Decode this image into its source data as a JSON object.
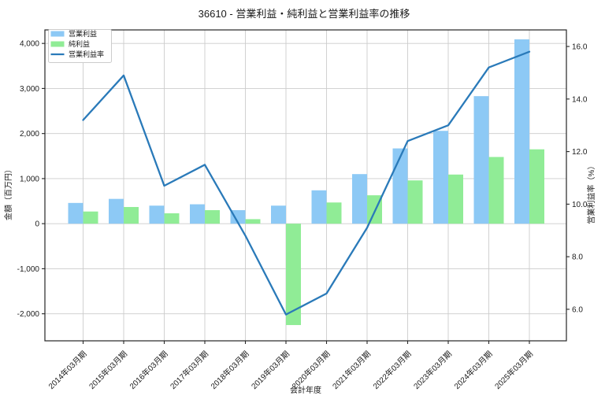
{
  "title": "36610 - 営業利益・純利益と営業利益率の推移",
  "chart_data": {
    "type": "bar+line",
    "title": "36610 - 営業利益・純利益と営業利益率の推移",
    "xlabel": "会計年度",
    "ylabel_left": "金額（百万円）",
    "ylabel_right": "営業利益率（%）",
    "grid": true,
    "legend_position": "upper-left",
    "categories": [
      "2014年03月期",
      "2015年03月期",
      "2016年03月期",
      "2017年03月期",
      "2018年03月期",
      "2019年03月期",
      "2020年03月期",
      "2021年03月期",
      "2022年03月期",
      "2023年03月期",
      "2024年03月期",
      "2025年03月期"
    ],
    "series": [
      {
        "name": "営業利益",
        "type": "bar",
        "axis": "left",
        "color": "#8dc9f5",
        "values": [
          460,
          550,
          400,
          430,
          300,
          400,
          740,
          1100,
          1670,
          2060,
          2830,
          4090
        ]
      },
      {
        "name": "純利益",
        "type": "bar",
        "axis": "left",
        "color": "#90ec96",
        "values": [
          270,
          370,
          230,
          300,
          100,
          -2250,
          470,
          630,
          960,
          1090,
          1480,
          1650
        ]
      },
      {
        "name": "営業利益率",
        "type": "line",
        "axis": "right",
        "color": "#2a7ab9",
        "values": [
          13.2,
          14.9,
          10.7,
          11.5,
          8.8,
          5.8,
          6.6,
          9.1,
          12.4,
          13.0,
          15.2,
          15.8
        ]
      }
    ],
    "ylim_left": [
      -2600,
      4300
    ],
    "ylim_right": [
      4.8,
      16.63
    ],
    "yticks_left": [
      {
        "v": -2000,
        "label": "-2,000"
      },
      {
        "v": -1000,
        "label": "-1,000"
      },
      {
        "v": 0,
        "label": "0"
      },
      {
        "v": 1000,
        "label": "1,000"
      },
      {
        "v": 2000,
        "label": "2,000"
      },
      {
        "v": 3000,
        "label": "3,000"
      },
      {
        "v": 4000,
        "label": "4,000"
      }
    ],
    "yticks_right": [
      {
        "v": 6,
        "label": "6.0"
      },
      {
        "v": 8,
        "label": "8.0"
      },
      {
        "v": 10,
        "label": "10.0"
      },
      {
        "v": 12,
        "label": "12.0"
      },
      {
        "v": 14,
        "label": "14.0"
      },
      {
        "v": 16,
        "label": "16.0"
      }
    ]
  },
  "colors": {
    "background": "#ffffff",
    "grid": "#cccccc",
    "spine": "#262626",
    "text": "#1a1a1a",
    "bar_operating_profit": "#8dc9f5",
    "bar_net_profit": "#90ec96",
    "line_margin": "#2a7ab9",
    "legend_border": "#cccccc"
  }
}
